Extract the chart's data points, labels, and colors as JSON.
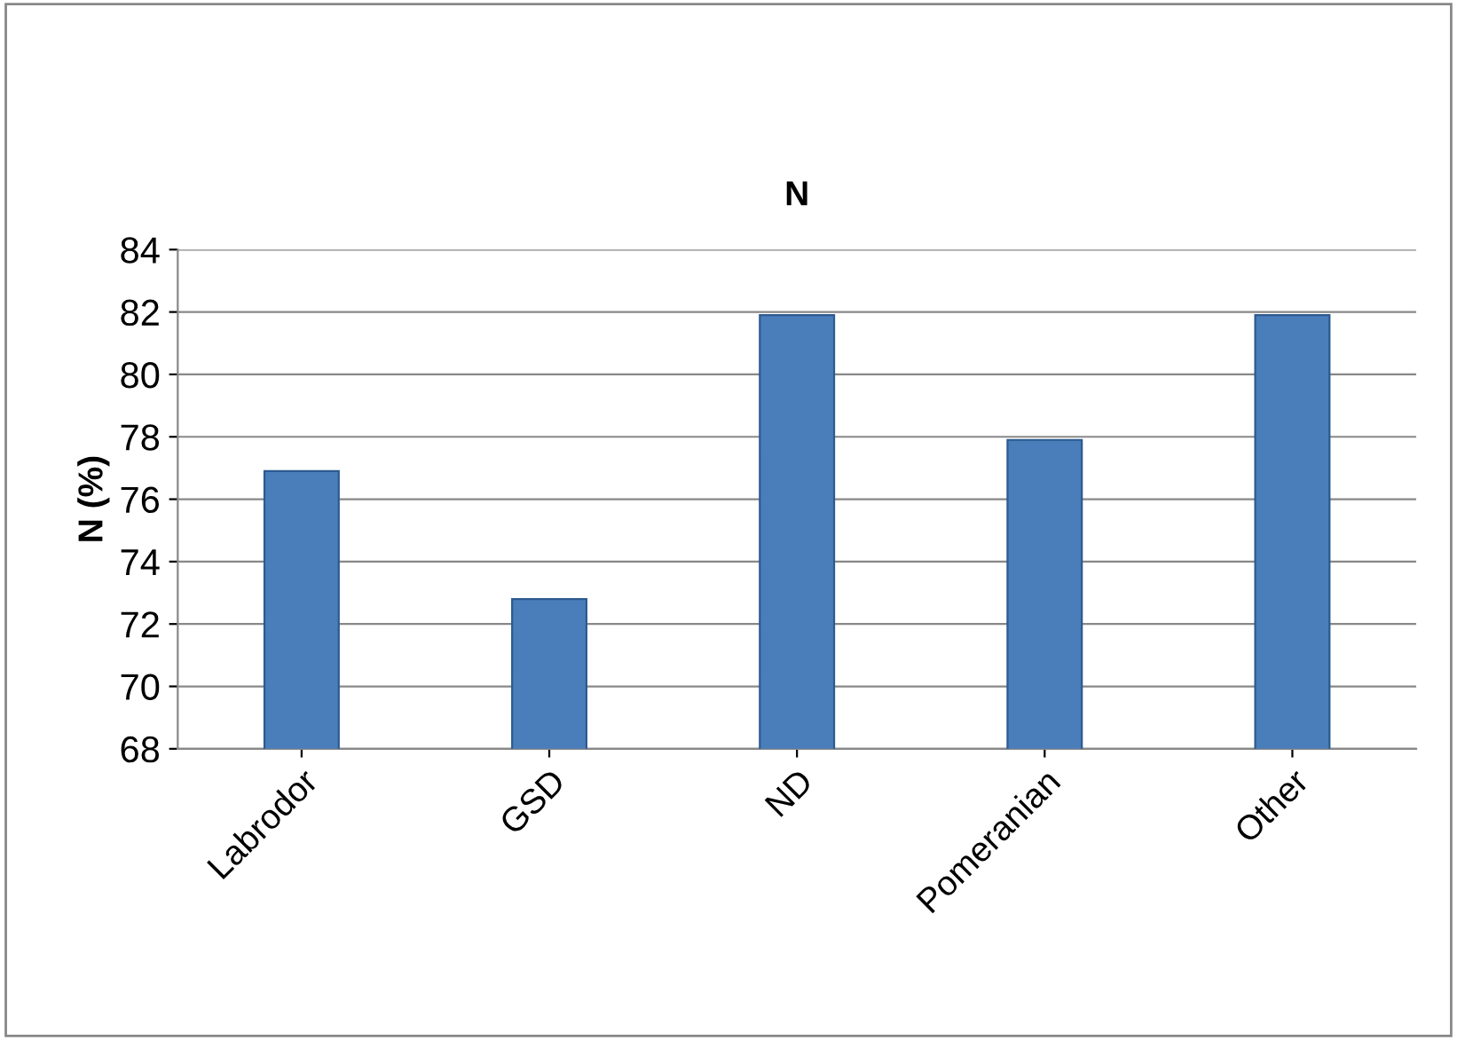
{
  "chart_data": {
    "type": "bar",
    "title": "N",
    "ylabel": "N (%)",
    "categories": [
      "Labrodor",
      "GSD",
      "ND",
      "Pomeranian",
      "Other"
    ],
    "values": [
      76.9,
      72.8,
      81.9,
      77.9,
      81.9
    ],
    "color": "#4a7ebb",
    "ylim": [
      68,
      84
    ],
    "yticks": [
      68,
      70,
      72,
      74,
      76,
      78,
      80,
      82,
      84
    ],
    "grid": "y"
  }
}
